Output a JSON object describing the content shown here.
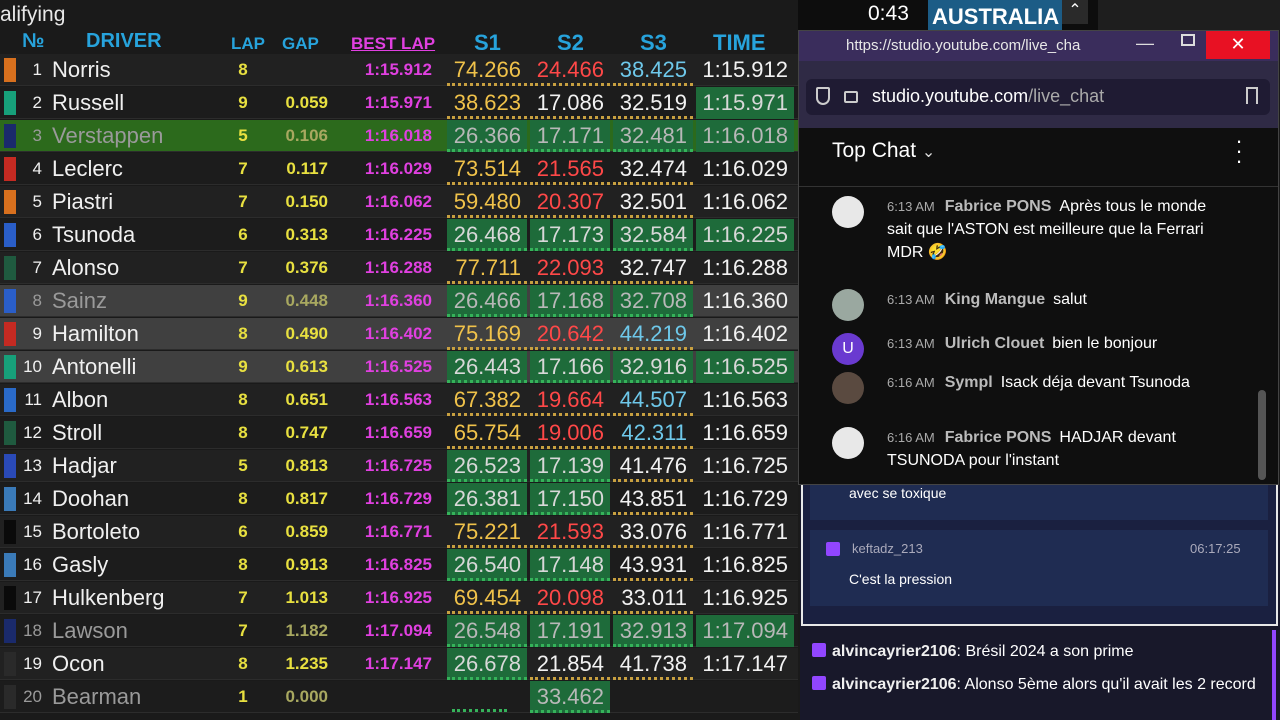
{
  "session": "alifying",
  "timing": {
    "headers": {
      "pos": "№",
      "driver": "DRIVER",
      "lap": "LAP",
      "gap": "GAP",
      "best": "BEST LAP",
      "s1": "S1",
      "s2": "S2",
      "s3": "S3",
      "time": "TIME"
    },
    "rows": [
      {
        "pos": "1",
        "driver": "Norris",
        "lap": "8",
        "best": "1:15.912",
        "s1": "74.266",
        "s2": "24.466",
        "s3": "38.425",
        "time": "1:15.912"
      },
      {
        "pos": "2",
        "driver": "Russell",
        "lap": "9",
        "gap": "0.059",
        "best": "1:15.971",
        "s1": "38.623",
        "s2": "17.086",
        "s3": "32.519",
        "time": "1:15.971"
      },
      {
        "pos": "3",
        "driver": "Verstappen",
        "lap": "5",
        "gap": "0.106",
        "best": "1:16.018",
        "s1": "26.366",
        "s2": "17.171",
        "s3": "32.481",
        "time": "1:16.018"
      },
      {
        "pos": "4",
        "driver": "Leclerc",
        "lap": "7",
        "gap": "0.117",
        "best": "1:16.029",
        "s1": "73.514",
        "s2": "21.565",
        "s3": "32.474",
        "time": "1:16.029"
      },
      {
        "pos": "5",
        "driver": "Piastri",
        "lap": "7",
        "gap": "0.150",
        "best": "1:16.062",
        "s1": "59.480",
        "s2": "20.307",
        "s3": "32.501",
        "time": "1:16.062"
      },
      {
        "pos": "6",
        "driver": "Tsunoda",
        "lap": "6",
        "gap": "0.313",
        "best": "1:16.225",
        "s1": "26.468",
        "s2": "17.173",
        "s3": "32.584",
        "time": "1:16.225"
      },
      {
        "pos": "7",
        "driver": "Alonso",
        "lap": "7",
        "gap": "0.376",
        "best": "1:16.288",
        "s1": "77.711",
        "s2": "22.093",
        "s3": "32.747",
        "time": "1:16.288"
      },
      {
        "pos": "8",
        "driver": "Sainz",
        "lap": "9",
        "gap": "0.448",
        "best": "1:16.360",
        "s1": "26.466",
        "s2": "17.168",
        "s3": "32.708",
        "time": "1:16.360"
      },
      {
        "pos": "9",
        "driver": "Hamilton",
        "lap": "8",
        "gap": "0.490",
        "best": "1:16.402",
        "s1": "75.169",
        "s2": "20.642",
        "s3": "44.219",
        "time": "1:16.402"
      },
      {
        "pos": "10",
        "driver": "Antonelli",
        "lap": "9",
        "gap": "0.613",
        "best": "1:16.525",
        "s1": "26.443",
        "s2": "17.166",
        "s3": "32.916",
        "time": "1:16.525"
      },
      {
        "pos": "11",
        "driver": "Albon",
        "lap": "8",
        "gap": "0.651",
        "best": "1:16.563",
        "s1": "67.382",
        "s2": "19.664",
        "s3": "44.507",
        "time": "1:16.563"
      },
      {
        "pos": "12",
        "driver": "Stroll",
        "lap": "8",
        "gap": "0.747",
        "best": "1:16.659",
        "s1": "65.754",
        "s2": "19.006",
        "s3": "42.311",
        "time": "1:16.659"
      },
      {
        "pos": "13",
        "driver": "Hadjar",
        "lap": "5",
        "gap": "0.813",
        "best": "1:16.725",
        "s1": "26.523",
        "s2": "17.139",
        "s3": "41.476",
        "time": "1:16.725"
      },
      {
        "pos": "14",
        "driver": "Doohan",
        "lap": "8",
        "gap": "0.817",
        "best": "1:16.729",
        "s1": "26.381",
        "s2": "17.150",
        "s3": "43.851",
        "time": "1:16.729"
      },
      {
        "pos": "15",
        "driver": "Bortoleto",
        "lap": "6",
        "gap": "0.859",
        "best": "1:16.771",
        "s1": "75.221",
        "s2": "21.593",
        "s3": "33.076",
        "time": "1:16.771"
      },
      {
        "pos": "16",
        "driver": "Gasly",
        "lap": "8",
        "gap": "0.913",
        "best": "1:16.825",
        "s1": "26.540",
        "s2": "17.148",
        "s3": "43.931",
        "time": "1:16.825"
      },
      {
        "pos": "17",
        "driver": "Hulkenberg",
        "lap": "7",
        "gap": "1.013",
        "best": "1:16.925",
        "s1": "69.454",
        "s2": "20.098",
        "s3": "33.011",
        "time": "1:16.925"
      },
      {
        "pos": "18",
        "driver": "Lawson",
        "lap": "7",
        "gap": "1.182",
        "best": "1:17.094",
        "s1": "26.548",
        "s2": "17.191",
        "s3": "32.913",
        "time": "1:17.094"
      },
      {
        "pos": "19",
        "driver": "Ocon",
        "lap": "8",
        "gap": "1.235",
        "best": "1:17.147",
        "s1": "26.678",
        "s2": "21.854",
        "s3": "41.738",
        "time": "1:17.147"
      },
      {
        "pos": "20",
        "driver": "Bearman",
        "lap": "1",
        "gap": "0.000",
        "s2": "33.462"
      }
    ]
  },
  "overlay": {
    "clock": "0:43",
    "country": "AUSTRALIA"
  },
  "browser": {
    "title_url": "https://studio.youtube.com/live_cha",
    "address": {
      "host": "studio.youtube.com",
      "path": "/live_chat"
    },
    "chat_title": "Top Chat",
    "messages": [
      {
        "time": "6:13 AM",
        "author": "Fabrice PONS",
        "text": "Après tous le monde sait que l'ASTON est meilleure que la Ferrari MDR 🤣"
      },
      {
        "time": "6:13 AM",
        "author": "King Mangue",
        "text": "salut"
      },
      {
        "time": "6:13 AM",
        "author": "Ulrich Clouet",
        "avatar": "U",
        "text": "bien le bonjour"
      },
      {
        "time": "6:16 AM",
        "author": "Sympl",
        "text": "Isack déja devant Tsunoda"
      },
      {
        "time": "6:16 AM",
        "author": "Fabrice PONS",
        "text": "HADJAR devant TSUNODA pour l'instant"
      }
    ]
  },
  "twitch": {
    "partial": "avec se toxique",
    "card": {
      "user": "keftadz_213",
      "time": "06:17:25",
      "text": "C'est la pression"
    },
    "messages": [
      {
        "user": "alvincayrier2106",
        "text": ": Brésil 2024 a son prime"
      },
      {
        "user": "alvincayrier2106",
        "text": ": Alonso 5ème alors qu'il avait les 2 record"
      }
    ]
  }
}
